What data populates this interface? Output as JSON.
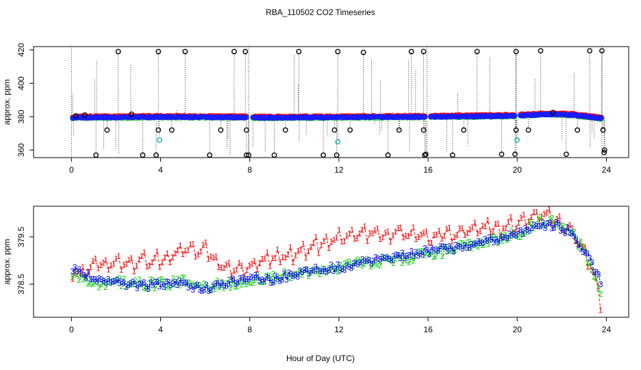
{
  "figure": {
    "title": "RBA_110502  CO2 Timeseries",
    "xlabel": "Hour of Day (UTC)"
  },
  "chart_data": [
    {
      "type": "scatter",
      "panel": "top",
      "title": "RBA_110502  CO2 Timeseries",
      "ylabel": "approx. ppm",
      "xlabel": "",
      "xlim": [
        -1.7,
        25
      ],
      "ylim": [
        355.5,
        422
      ],
      "xticks": [
        0,
        4,
        8,
        12,
        16,
        20,
        24
      ],
      "yticks": [
        360,
        380,
        400,
        420
      ],
      "baseline": [
        [
          0.05,
          379.5
        ],
        [
          2,
          379.6
        ],
        [
          4,
          379.8
        ],
        [
          6,
          379.7
        ],
        [
          7.9,
          379.6
        ],
        [
          8.1,
          379.4
        ],
        [
          10,
          379.5
        ],
        [
          12,
          379.6
        ],
        [
          14,
          379.8
        ],
        [
          15.9,
          379.9
        ],
        [
          16.1,
          380.0
        ],
        [
          18,
          380.2
        ],
        [
          19.9,
          380.5
        ],
        [
          20.1,
          380.7
        ],
        [
          21.5,
          381.5
        ],
        [
          22.5,
          381.0
        ],
        [
          23.3,
          379.7
        ],
        [
          23.75,
          379.0
        ]
      ],
      "gaps": [
        [
          7.88,
          8.12
        ],
        [
          15.9,
          16.1
        ],
        [
          19.9,
          20.12
        ]
      ],
      "outliers": [
        {
          "x": 0.2,
          "y": 380.5
        },
        {
          "x": 0.6,
          "y": 381
        },
        {
          "x": 1.1,
          "y": 357
        },
        {
          "x": 1.6,
          "y": 372
        },
        {
          "x": 2.1,
          "y": 419
        },
        {
          "x": 2.7,
          "y": 381.5
        },
        {
          "x": 3.2,
          "y": 357
        },
        {
          "x": 3.8,
          "y": 357
        },
        {
          "x": 3.9,
          "y": 372
        },
        {
          "x": 3.9,
          "y": 419
        },
        {
          "x": 3.95,
          "y": 366
        },
        {
          "x": 4.5,
          "y": 372
        },
        {
          "x": 5.1,
          "y": 419
        },
        {
          "x": 6.2,
          "y": 357
        },
        {
          "x": 6.7,
          "y": 372
        },
        {
          "x": 7.3,
          "y": 419
        },
        {
          "x": 7.8,
          "y": 419
        },
        {
          "x": 7.85,
          "y": 372
        },
        {
          "x": 7.85,
          "y": 357
        },
        {
          "x": 7.95,
          "y": 357
        },
        {
          "x": 9.1,
          "y": 357
        },
        {
          "x": 9.6,
          "y": 372
        },
        {
          "x": 10.2,
          "y": 419
        },
        {
          "x": 11.3,
          "y": 357
        },
        {
          "x": 11.8,
          "y": 372
        },
        {
          "x": 11.95,
          "y": 419
        },
        {
          "x": 11.9,
          "y": 357
        },
        {
          "x": 11.95,
          "y": 365
        },
        {
          "x": 12.5,
          "y": 372
        },
        {
          "x": 13.1,
          "y": 418.5
        },
        {
          "x": 14.2,
          "y": 357
        },
        {
          "x": 14.7,
          "y": 372
        },
        {
          "x": 15.25,
          "y": 419
        },
        {
          "x": 15.8,
          "y": 419
        },
        {
          "x": 15.8,
          "y": 372
        },
        {
          "x": 15.85,
          "y": 357
        },
        {
          "x": 15.9,
          "y": 357.5
        },
        {
          "x": 17.1,
          "y": 357
        },
        {
          "x": 17.6,
          "y": 372
        },
        {
          "x": 18.2,
          "y": 419
        },
        {
          "x": 19.3,
          "y": 357.5
        },
        {
          "x": 19.9,
          "y": 357.5
        },
        {
          "x": 19.95,
          "y": 372
        },
        {
          "x": 19.95,
          "y": 419
        },
        {
          "x": 19.99,
          "y": 366
        },
        {
          "x": 20.5,
          "y": 372
        },
        {
          "x": 21.05,
          "y": 419.5
        },
        {
          "x": 21.6,
          "y": 382.5
        },
        {
          "x": 22.2,
          "y": 357.5
        },
        {
          "x": 22.7,
          "y": 372
        },
        {
          "x": 23.25,
          "y": 419.5
        },
        {
          "x": 23.8,
          "y": 419.5
        },
        {
          "x": 23.85,
          "y": 372
        },
        {
          "x": 23.9,
          "y": 358.5
        },
        {
          "x": 23.92,
          "y": 360
        }
      ],
      "cyan_points": [
        {
          "x": 3.95,
          "y": 366
        },
        {
          "x": 11.95,
          "y": 365
        },
        {
          "x": 19.99,
          "y": 366
        }
      ]
    },
    {
      "type": "line",
      "panel": "bottom",
      "ylabel": "approx. ppm",
      "xlabel": "Hour of Day (UTC)",
      "xlim": [
        -1.7,
        25
      ],
      "ylim": [
        377.8,
        380.15
      ],
      "xticks": [
        0,
        4,
        8,
        12,
        16,
        20,
        24
      ],
      "yticks": [
        378.5,
        379.5
      ],
      "series": [
        {
          "name": "1",
          "color": "#ff0000",
          "x": [
            0.05,
            0.4,
            1,
            2,
            3,
            3.8,
            4.2,
            5,
            6,
            6.8,
            7.8,
            8.2,
            9,
            10,
            11,
            12,
            13,
            14,
            15,
            16,
            17,
            18,
            19,
            20,
            21,
            21.8,
            22.5,
            23,
            23.4,
            23.8
          ],
          "values": [
            378.8,
            378.7,
            378.9,
            378.95,
            378.95,
            379.0,
            379.05,
            379.25,
            379.2,
            378.9,
            378.8,
            378.9,
            379.05,
            379.15,
            379.3,
            379.5,
            379.6,
            379.55,
            379.6,
            379.45,
            379.6,
            379.65,
            379.7,
            379.8,
            379.95,
            379.85,
            379.6,
            379.2,
            378.8,
            377.9
          ],
          "amp": 0.2
        },
        {
          "name": "2",
          "color": "#00cc00",
          "x": [
            0.05,
            1,
            2,
            3,
            4,
            5,
            6,
            7,
            8,
            9,
            10,
            11,
            12,
            13,
            14,
            15,
            16,
            17,
            18,
            19,
            20,
            21,
            21.8,
            22.5,
            23,
            23.4,
            23.8
          ],
          "values": [
            378.75,
            378.5,
            378.55,
            378.5,
            378.5,
            378.55,
            378.45,
            378.5,
            378.6,
            378.65,
            378.7,
            378.75,
            378.85,
            378.95,
            379.0,
            379.05,
            379.15,
            379.2,
            379.35,
            379.45,
            379.55,
            379.85,
            379.8,
            379.55,
            379.2,
            378.8,
            378.2
          ],
          "amp": 0.1
        },
        {
          "name": "3",
          "color": "#0000ff",
          "x": [
            0.05,
            1,
            2,
            3,
            4,
            5,
            6,
            7,
            8,
            9,
            10,
            11,
            12,
            13,
            14,
            15,
            16,
            17,
            18,
            19,
            20,
            21,
            21.8,
            22.5,
            23,
            23.4,
            23.8
          ],
          "values": [
            378.85,
            378.6,
            378.55,
            378.45,
            378.5,
            378.5,
            378.4,
            378.5,
            378.65,
            378.6,
            378.7,
            378.8,
            378.85,
            378.95,
            379.05,
            379.1,
            379.2,
            379.25,
            379.35,
            379.45,
            379.55,
            379.75,
            379.75,
            379.55,
            379.2,
            378.85,
            378.5
          ],
          "amp": 0.08
        }
      ]
    }
  ]
}
